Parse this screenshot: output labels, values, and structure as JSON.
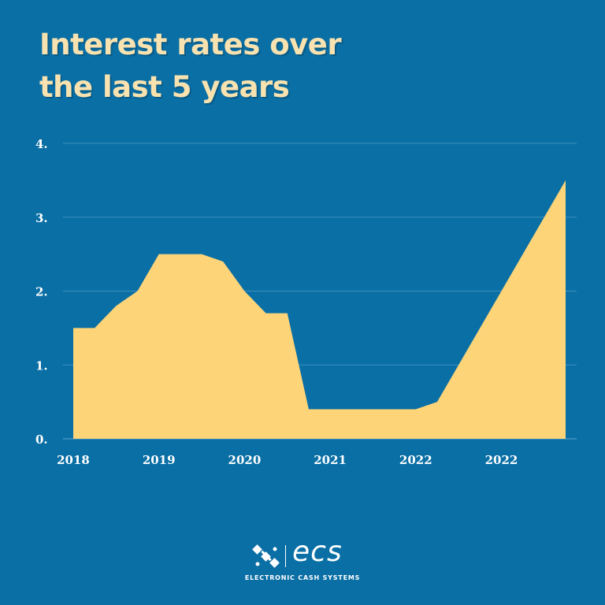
{
  "header": {
    "title_line1": "Interest rates over",
    "title_line2": "the last 5 years"
  },
  "colors": {
    "background": "#0A6FA5",
    "area_fill": "#FDD478",
    "title": "#F8E2B0",
    "gridline": "#4F9CC6"
  },
  "chart_data": {
    "type": "area",
    "title": "Interest rates over the last 5 years",
    "xlabel": "",
    "ylabel": "",
    "ylim": [
      0,
      4
    ],
    "y_ticks": [
      0,
      1,
      2,
      3,
      4
    ],
    "y_tick_labels": [
      "0.",
      "1.",
      "2.",
      "3.",
      "4."
    ],
    "x_tick_labels": [
      "2018",
      "2019",
      "2020",
      "2021",
      "2022",
      "2022"
    ],
    "x_tick_positions": [
      0,
      4,
      8,
      12,
      16,
      20
    ],
    "xlim": [
      0,
      23
    ],
    "grid": true,
    "series": [
      {
        "x": [
          0,
          1,
          2,
          3,
          4,
          5,
          6,
          7,
          8,
          9,
          10,
          11,
          12,
          13,
          14,
          15,
          16,
          17,
          18,
          19,
          20,
          21,
          22,
          23
        ],
        "values": [
          1.5,
          1.5,
          1.8,
          2.0,
          2.5,
          2.5,
          2.5,
          2.4,
          2.0,
          1.7,
          1.7,
          0.4,
          0.4,
          0.4,
          0.4,
          0.4,
          0.4,
          0.5,
          1.0,
          1.5,
          2.0,
          2.5,
          3.0,
          3.5
        ]
      }
    ]
  },
  "brand": {
    "logo_icon": "ecs-satellite-mark",
    "wordmark": "ecs",
    "tagline": "ELECTRONIC CASH SYSTEMS"
  }
}
